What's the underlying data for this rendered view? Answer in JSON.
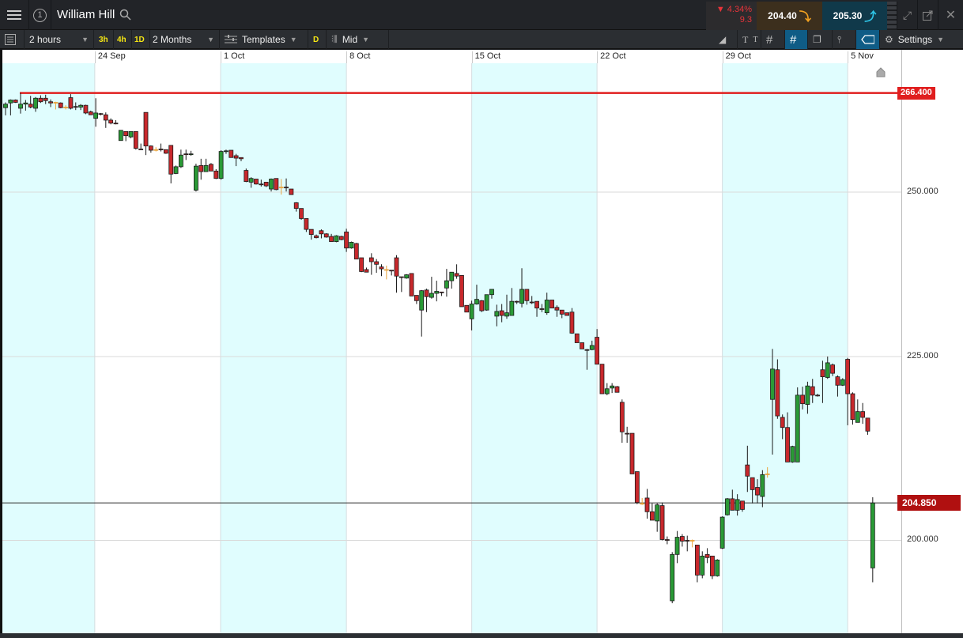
{
  "header": {
    "instrument": "William Hill",
    "window_number": "1",
    "change_pct": "4.34%",
    "change_abs": "9.3",
    "sell_price": "204.40",
    "buy_price": "205.30",
    "icons": [
      "menu-icon",
      "window-number-icon",
      "search-icon",
      "drag-handle-icon",
      "expand-icon",
      "popout-icon",
      "close-icon"
    ]
  },
  "toolbar": {
    "interval": "2 hours",
    "quick_intervals": [
      "3h",
      "4h",
      "1D"
    ],
    "range": "2 Months",
    "templates_label": "Templates",
    "daily_label": "D",
    "price_type": "Mid",
    "settings_label": "Settings",
    "right_icons": [
      "draw-line-icon",
      "text-icon",
      "grid-icon",
      "crosshair-grid-icon",
      "layers-icon",
      "candle-type-icon",
      "price-tag-icon",
      "gear-icon"
    ]
  },
  "colors": {
    "up": "#2a9a36",
    "down": "#c8282c",
    "unchanged": "#e9a33c",
    "alert_line": "#e01e1e",
    "price_badge": "#b01010",
    "band": "#e0fdfe"
  },
  "chart_data": {
    "type": "candlestick",
    "y_scale": "log",
    "grid": true,
    "x_tick_labels": [
      "24 Sep",
      "1 Oct",
      "8 Oct",
      "15 Oct",
      "22 Oct",
      "29 Oct",
      "5 Nov"
    ],
    "y_tick_labels": [
      "250.000",
      "225.000",
      "200.000"
    ],
    "y_ticks": [
      250,
      225,
      200
    ],
    "ylim": [
      186,
      270
    ],
    "alert_level": {
      "value": 266.4,
      "label": "266.400"
    },
    "last_price": {
      "value": 204.85,
      "label": "204.850"
    },
    "candles_ohlc": [
      [
        263.9,
        264.8,
        262.6,
        264.5
      ],
      [
        264.7,
        265.3,
        262.6,
        265.2
      ],
      [
        265.2,
        265.3,
        264.7,
        264.8
      ],
      [
        263.8,
        266.4,
        262.9,
        264.5
      ],
      [
        264.5,
        265.2,
        263.4,
        264.7
      ],
      [
        264.5,
        265.9,
        263.8,
        264.0
      ],
      [
        263.8,
        265.7,
        263.2,
        265.5
      ],
      [
        265.5,
        266.0,
        264.7,
        264.9
      ],
      [
        265.5,
        266.1,
        264.5,
        265.1
      ],
      [
        264.9,
        265.3,
        264.0,
        264.7
      ],
      [
        264.8,
        264.9,
        263.6,
        264.8
      ],
      [
        264.7,
        264.8,
        263.8,
        263.9
      ],
      [
        264.0,
        264.3,
        263.6,
        264.0
      ],
      [
        265.6,
        266.2,
        263.6,
        263.8
      ],
      [
        264.1,
        264.8,
        263.5,
        264.0
      ],
      [
        264.0,
        264.5,
        263.5,
        264.3
      ],
      [
        264.3,
        264.4,
        262.8,
        263.0
      ],
      [
        263.2,
        263.4,
        262.7,
        262.7
      ],
      [
        262.1,
        265.5,
        260.7,
        263.0
      ],
      [
        262.9,
        263.0,
        262.6,
        262.8
      ],
      [
        262.7,
        263.1,
        260.5,
        261.8
      ],
      [
        261.8,
        262.1,
        261.1,
        261.3
      ],
      [
        261.3,
        261.8,
        261.1,
        261.2
      ],
      [
        258.4,
        260.1,
        258.4,
        260.1
      ],
      [
        259.9,
        259.9,
        258.3,
        259.2
      ],
      [
        259.0,
        259.9,
        258.8,
        259.9
      ],
      [
        259.9,
        259.9,
        256.9,
        257.1
      ],
      [
        257.0,
        257.9,
        256.9,
        256.9
      ],
      [
        263.1,
        263.1,
        256.0,
        257.5
      ],
      [
        257.5,
        257.6,
        256.4,
        256.8
      ],
      [
        256.9,
        257.3,
        256.6,
        256.9
      ],
      [
        257.0,
        257.9,
        256.6,
        256.9
      ],
      [
        256.9,
        256.9,
        256.2,
        256.3
      ],
      [
        257.6,
        257.6,
        251.4,
        252.9
      ],
      [
        253.0,
        254.3,
        252.9,
        254.1
      ],
      [
        254.1,
        256.9,
        253.9,
        256.0
      ],
      [
        256.2,
        256.9,
        255.2,
        256.1
      ],
      [
        256.1,
        256.7,
        255.9,
        256.2
      ],
      [
        250.3,
        254.6,
        250.1,
        254.2
      ],
      [
        254.3,
        255.4,
        252.0,
        253.3
      ],
      [
        253.3,
        255.4,
        253.3,
        254.3
      ],
      [
        254.5,
        254.7,
        253.4,
        253.4
      ],
      [
        253.4,
        253.7,
        252.1,
        252.2
      ],
      [
        252.2,
        256.8,
        252.0,
        256.6
      ],
      [
        256.6,
        256.9,
        256.2,
        256.7
      ],
      [
        256.8,
        256.8,
        255.6,
        255.6
      ],
      [
        255.9,
        256.2,
        254.2,
        255.5
      ],
      [
        255.6,
        255.6,
        255.0,
        255.4
      ],
      [
        253.5,
        253.8,
        251.6,
        251.7
      ],
      [
        251.6,
        252.4,
        250.7,
        252.2
      ],
      [
        252.1,
        252.1,
        251.2,
        251.3
      ],
      [
        251.3,
        252.0,
        250.9,
        251.2
      ],
      [
        251.6,
        251.6,
        250.8,
        251.0
      ],
      [
        250.5,
        252.2,
        250.1,
        252.1
      ],
      [
        252.2,
        252.2,
        250.3,
        250.4
      ],
      [
        250.8,
        252.1,
        249.6,
        250.8
      ],
      [
        250.8,
        252.2,
        250.1,
        250.7
      ],
      [
        250.5,
        250.5,
        249.6,
        249.6
      ],
      [
        248.3,
        248.4,
        246.9,
        247.4
      ],
      [
        247.4,
        247.4,
        245.6,
        245.8
      ],
      [
        245.8,
        245.8,
        243.7,
        244.1
      ],
      [
        244.1,
        244.1,
        242.5,
        243.3
      ],
      [
        243.1,
        243.3,
        242.7,
        242.8
      ],
      [
        243.9,
        244.1,
        242.7,
        243.4
      ],
      [
        243.4,
        243.5,
        242.8,
        242.9
      ],
      [
        243.0,
        243.4,
        242.2,
        242.2
      ],
      [
        242.2,
        243.2,
        242.1,
        243.1
      ],
      [
        243.0,
        243.1,
        242.4,
        242.5
      ],
      [
        243.7,
        244.2,
        240.6,
        241.2
      ],
      [
        241.2,
        242.2,
        241.1,
        242.1
      ],
      [
        241.9,
        242.0,
        239.5,
        239.5
      ],
      [
        239.7,
        239.7,
        237.5,
        237.6
      ],
      [
        237.9,
        238.2,
        237.5,
        237.5
      ],
      [
        239.7,
        240.4,
        237.1,
        239.1
      ],
      [
        239.1,
        239.5,
        237.4,
        238.7
      ],
      [
        238.3,
        238.7,
        236.9,
        238.0
      ],
      [
        237.9,
        238.5,
        236.4,
        237.9
      ],
      [
        237.8,
        237.8,
        237.0,
        237.7
      ],
      [
        239.7,
        240.1,
        234.4,
        236.9
      ],
      [
        236.8,
        236.8,
        234.5,
        236.7
      ],
      [
        236.6,
        237.2,
        236.5,
        237.1
      ],
      [
        237.3,
        237.3,
        233.9,
        233.9
      ],
      [
        234.0,
        234.0,
        232.7,
        233.2
      ],
      [
        231.8,
        234.8,
        227.9,
        234.7
      ],
      [
        234.8,
        235.0,
        231.5,
        233.8
      ],
      [
        233.7,
        236.8,
        233.5,
        234.3
      ],
      [
        234.3,
        236.2,
        233.1,
        234.6
      ],
      [
        234.5,
        234.5,
        233.9,
        234.4
      ],
      [
        235.1,
        238.0,
        233.8,
        236.2
      ],
      [
        236.2,
        237.5,
        235.0,
        237.5
      ],
      [
        237.3,
        238.7,
        236.5,
        236.9
      ],
      [
        237.0,
        237.0,
        232.3,
        232.3
      ],
      [
        232.5,
        232.5,
        231.5,
        231.5
      ],
      [
        230.5,
        233.2,
        228.8,
        232.7
      ],
      [
        232.7,
        235.6,
        232.6,
        233.4
      ],
      [
        233.2,
        233.3,
        231.5,
        231.7
      ],
      [
        231.8,
        234.1,
        231.7,
        234.1
      ],
      [
        234.1,
        234.9,
        233.5,
        234.9
      ],
      [
        230.9,
        232.6,
        229.4,
        231.6
      ],
      [
        231.7,
        232.7,
        230.0,
        231.0
      ],
      [
        230.9,
        234.1,
        230.5,
        231.4
      ],
      [
        231.0,
        235.1,
        231.0,
        233.1
      ],
      [
        233.1,
        233.2,
        232.7,
        233.0
      ],
      [
        232.8,
        238.1,
        232.2,
        234.9
      ],
      [
        234.9,
        234.9,
        232.6,
        233.2
      ],
      [
        233.0,
        233.9,
        232.7,
        232.9
      ],
      [
        233.1,
        233.1,
        230.8,
        232.1
      ],
      [
        232.0,
        232.7,
        231.5,
        231.9
      ],
      [
        231.4,
        234.4,
        231.1,
        233.3
      ],
      [
        233.3,
        233.3,
        232.1,
        232.1
      ],
      [
        232.2,
        232.5,
        230.8,
        231.8
      ],
      [
        231.8,
        231.8,
        230.6,
        231.2
      ],
      [
        231.4,
        231.4,
        231.0,
        231.0
      ],
      [
        231.5,
        232.1,
        228.3,
        228.4
      ],
      [
        228.3,
        228.3,
        227.0,
        227.0
      ],
      [
        227.0,
        227.0,
        226.1,
        226.1
      ],
      [
        226.0,
        226.1,
        223.1,
        225.9
      ],
      [
        226.0,
        227.3,
        225.9,
        226.6
      ],
      [
        227.8,
        229.0,
        223.9,
        223.9
      ],
      [
        223.9,
        223.9,
        219.7,
        219.7
      ],
      [
        219.7,
        221.2,
        219.5,
        220.4
      ],
      [
        220.5,
        221.2,
        219.8,
        220.8
      ],
      [
        220.7,
        220.8,
        219.9,
        219.9
      ],
      [
        218.5,
        218.9,
        212.9,
        214.4
      ],
      [
        214.2,
        215.1,
        212.9,
        214.1
      ],
      [
        214.2,
        214.2,
        208.7,
        208.7
      ],
      [
        209.0,
        209.0,
        204.7,
        204.9
      ],
      [
        204.8,
        205.5,
        204.6,
        204.8
      ],
      [
        205.5,
        206.7,
        202.8,
        203.7
      ],
      [
        203.7,
        204.8,
        202.6,
        202.6
      ],
      [
        202.5,
        204.8,
        201.1,
        204.6
      ],
      [
        204.5,
        204.9,
        200.0,
        200.1
      ],
      [
        200.1,
        200.5,
        199.5,
        200.0
      ],
      [
        192.4,
        198.5,
        192.1,
        198.2
      ],
      [
        198.2,
        201.2,
        197.1,
        200.4
      ],
      [
        200.5,
        200.8,
        199.2,
        199.9
      ],
      [
        200.0,
        200.6,
        198.6,
        199.9
      ],
      [
        200.0,
        200.1,
        199.1,
        200.0
      ],
      [
        199.4,
        199.4,
        194.7,
        195.6
      ],
      [
        195.6,
        198.6,
        195.2,
        198.0
      ],
      [
        198.2,
        199.0,
        197.1,
        197.8
      ],
      [
        198.0,
        198.0,
        195.1,
        195.5
      ],
      [
        195.5,
        197.6,
        195.4,
        197.5
      ],
      [
        199.0,
        203.1,
        198.9,
        203.0
      ],
      [
        203.3,
        205.5,
        203.2,
        205.4
      ],
      [
        205.4,
        206.6,
        203.9,
        203.9
      ],
      [
        203.9,
        206.0,
        203.2,
        205.3
      ],
      [
        205.1,
        205.1,
        203.7,
        204.0
      ],
      [
        209.9,
        212.5,
        206.3,
        208.4
      ],
      [
        208.2,
        208.2,
        204.8,
        206.6
      ],
      [
        206.9,
        208.0,
        204.8,
        205.9
      ],
      [
        205.7,
        209.2,
        204.3,
        208.6
      ],
      [
        208.7,
        209.6,
        208.2,
        208.7
      ],
      [
        218.9,
        226.1,
        211.3,
        223.2
      ],
      [
        223.1,
        224.6,
        216.2,
        216.6
      ],
      [
        216.4,
        216.8,
        213.4,
        215.0
      ],
      [
        215.0,
        217.1,
        210.3,
        210.3
      ],
      [
        210.3,
        212.5,
        210.2,
        212.4
      ],
      [
        210.3,
        220.6,
        210.3,
        219.5
      ],
      [
        219.5,
        220.7,
        217.5,
        218.3
      ],
      [
        218.2,
        221.4,
        216.9,
        220.8
      ],
      [
        220.7,
        221.8,
        218.4,
        219.5
      ],
      [
        219.5,
        219.7,
        219.3,
        219.4
      ],
      [
        223.1,
        224.4,
        218.4,
        222.1
      ],
      [
        222.0,
        225.0,
        221.8,
        224.1
      ],
      [
        223.8,
        224.0,
        222.2,
        222.6
      ],
      [
        222.1,
        222.3,
        219.3,
        220.9
      ],
      [
        220.9,
        221.9,
        220.8,
        221.7
      ],
      [
        224.6,
        224.8,
        215.3,
        219.7
      ],
      [
        219.7,
        219.9,
        215.4,
        216.1
      ],
      [
        215.7,
        218.9,
        215.7,
        217.2
      ],
      [
        217.2,
        218.4,
        215.5,
        216.4
      ],
      [
        216.3,
        216.3,
        214.0,
        214.5
      ],
      [
        196.5,
        205.6,
        194.7,
        204.85
      ]
    ]
  }
}
